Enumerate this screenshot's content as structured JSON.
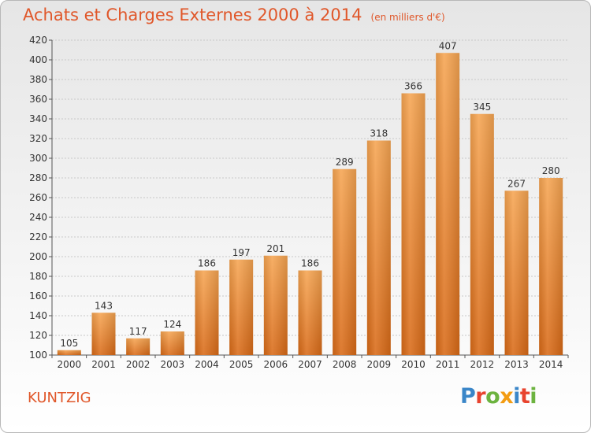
{
  "header": {
    "title": "Achats et Charges Externes 2000 à 2014",
    "unit": "(en milliers d'€)"
  },
  "footer": {
    "commune": "KUNTZIG",
    "logo_letters": [
      {
        "ch": "P",
        "color": "#3a86c8"
      },
      {
        "ch": "r",
        "color": "#e8432e"
      },
      {
        "ch": "o",
        "color": "#6cb33f"
      },
      {
        "ch": "x",
        "color": "#f39c12"
      },
      {
        "ch": "i",
        "color": "#3a86c8"
      },
      {
        "ch": "t",
        "color": "#e8432e"
      },
      {
        "ch": "i",
        "color": "#6cb33f"
      }
    ]
  },
  "chart_data": {
    "type": "bar",
    "title": "Achats et Charges Externes 2000 à 2014",
    "subtitle": "(en milliers d'€)",
    "categories": [
      "2000",
      "2001",
      "2002",
      "2003",
      "2004",
      "2005",
      "2006",
      "2007",
      "2008",
      "2009",
      "2010",
      "2011",
      "2012",
      "2013",
      "2014"
    ],
    "values": [
      105,
      143,
      117,
      124,
      186,
      197,
      201,
      186,
      289,
      318,
      366,
      407,
      345,
      267,
      280
    ],
    "ylim": [
      100,
      420
    ],
    "yticks": [
      100,
      120,
      140,
      160,
      180,
      200,
      220,
      240,
      260,
      280,
      300,
      320,
      340,
      360,
      380,
      400,
      420
    ],
    "grid": true,
    "bar_color": "#f0913a",
    "bar_color_dark": "#d96a17"
  }
}
